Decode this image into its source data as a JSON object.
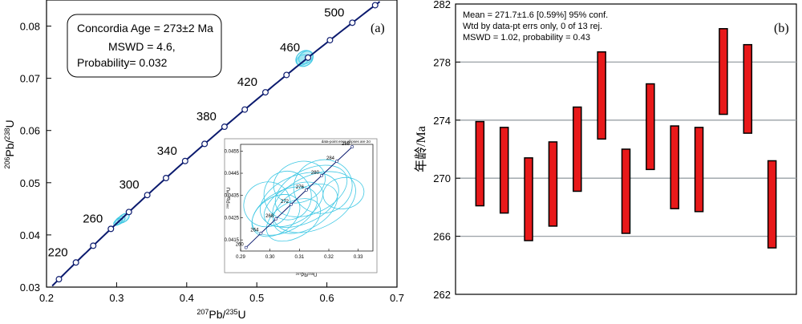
{
  "chart_data": [
    {
      "type": "scatter",
      "panel_label": "(a)",
      "xlabel_parts": [
        "207",
        "Pb/",
        "235",
        "U"
      ],
      "ylabel_parts": [
        "206",
        "Pb/",
        "238",
        "U"
      ],
      "xlim": [
        0.2,
        0.7
      ],
      "ylim": [
        0.03,
        0.085
      ],
      "xticks": [
        "0.2",
        "0.3",
        "0.4",
        "0.5",
        "0.6",
        "0.7"
      ],
      "yticks": [
        "0.03",
        "0.04",
        "0.05",
        "0.06",
        "0.07",
        "0.08"
      ],
      "xtick_values": [
        0.2,
        0.3,
        0.4,
        0.5,
        0.6,
        0.7
      ],
      "ytick_values": [
        0.03,
        0.04,
        0.05,
        0.06,
        0.07,
        0.08
      ],
      "concordia_age_labels": [
        "220",
        "260",
        "300",
        "340",
        "380",
        "420",
        "460",
        "500"
      ],
      "concordia_age_values": [
        220,
        260,
        300,
        340,
        380,
        420,
        460,
        500
      ],
      "concordia_marker_ages": [
        200,
        220,
        240,
        260,
        280,
        300,
        320,
        340,
        360,
        380,
        400,
        420,
        440,
        460,
        480,
        500,
        520
      ],
      "data_ellipses": [
        {
          "x": 0.305,
          "y": 0.0428,
          "rx": 0.008,
          "ry": 0.0006
        },
        {
          "x": 0.31,
          "y": 0.0432,
          "rx": 0.009,
          "ry": 0.0007
        },
        {
          "x": 0.302,
          "y": 0.0425,
          "rx": 0.007,
          "ry": 0.0005
        },
        {
          "x": 0.565,
          "y": 0.0735,
          "rx": 0.009,
          "ry": 0.0009
        },
        {
          "x": 0.57,
          "y": 0.074,
          "rx": 0.011,
          "ry": 0.0011
        },
        {
          "x": 0.568,
          "y": 0.0738,
          "rx": 0.013,
          "ry": 0.0014
        }
      ],
      "stats_box": {
        "line1": "Concordia Age = 273±2 Ma",
        "line2": "MSWD = 4.6,",
        "line3": "Probability= 0.032"
      },
      "inset": {
        "title": "data-point error ellipses are 2σ",
        "xlabel_parts": [
          "207",
          "Pb/",
          "235",
          "U"
        ],
        "ylabel_parts": [
          "206",
          "Pb/",
          "238",
          "U"
        ],
        "xlim": [
          0.29,
          0.335
        ],
        "ylim": [
          0.041,
          0.0458
        ],
        "xticks": [
          "0.29",
          "0.30",
          "0.31",
          "0.32",
          "0.33"
        ],
        "yticks": [
          "0.0415",
          "0.0425",
          "0.0435",
          "0.0445",
          "0.0455"
        ],
        "xtick_values": [
          0.29,
          0.3,
          0.31,
          0.32,
          0.33
        ],
        "ytick_values": [
          0.0415,
          0.0425,
          0.0435,
          0.0445,
          0.0455
        ],
        "age_labels": [
          "260",
          "264",
          "268",
          "272",
          "276",
          "280",
          "284",
          "288"
        ],
        "age_values": [
          260,
          264,
          268,
          272,
          276,
          280,
          284,
          288
        ],
        "ellipses": [
          {
            "x": 0.305,
            "y": 0.0428,
            "rx": 0.012,
            "ry": 0.0009,
            "rot": -28
          },
          {
            "x": 0.31,
            "y": 0.0433,
            "rx": 0.014,
            "ry": 0.0011,
            "rot": -22
          },
          {
            "x": 0.308,
            "y": 0.0431,
            "rx": 0.011,
            "ry": 0.0008,
            "rot": -30
          },
          {
            "x": 0.314,
            "y": 0.0437,
            "rx": 0.013,
            "ry": 0.001,
            "rot": -25
          },
          {
            "x": 0.302,
            "y": 0.0426,
            "rx": 0.009,
            "ry": 0.0008,
            "rot": -35
          },
          {
            "x": 0.318,
            "y": 0.0439,
            "rx": 0.01,
            "ry": 0.0012,
            "rot": -15
          },
          {
            "x": 0.306,
            "y": 0.0435,
            "rx": 0.008,
            "ry": 0.0011,
            "rot": -20
          },
          {
            "x": 0.312,
            "y": 0.0429,
            "rx": 0.012,
            "ry": 0.0009,
            "rot": -30
          },
          {
            "x": 0.325,
            "y": 0.0436,
            "rx": 0.007,
            "ry": 0.0007,
            "rot": -10
          },
          {
            "x": 0.299,
            "y": 0.0431,
            "rx": 0.008,
            "ry": 0.001,
            "rot": -25
          },
          {
            "x": 0.31,
            "y": 0.0441,
            "rx": 0.009,
            "ry": 0.0009,
            "rot": -20
          },
          {
            "x": 0.315,
            "y": 0.0432,
            "rx": 0.015,
            "ry": 0.0012,
            "rot": -25
          },
          {
            "x": 0.308,
            "y": 0.0424,
            "rx": 0.01,
            "ry": 0.0008,
            "rot": -30
          }
        ]
      }
    },
    {
      "type": "bar",
      "subtype": "floating-error-bars",
      "panel_label": "(b)",
      "ylabel": "年龄/Ma",
      "ylim": [
        262,
        282
      ],
      "yticks": [
        "262",
        "266",
        "270",
        "274",
        "278",
        "282"
      ],
      "ytick_values": [
        262,
        266,
        270,
        274,
        278,
        282
      ],
      "gridlines": [
        266,
        270,
        274,
        278
      ],
      "stats_lines": [
        "Mean = 271.7±1.6  [0.59%]  95% conf.",
        "Wtd by data-pt errs only, 0 of 13 rej.",
        "MSWD = 1.02, probability = 0.43"
      ],
      "bars": [
        {
          "low": 268.1,
          "high": 273.9
        },
        {
          "low": 267.6,
          "high": 273.5
        },
        {
          "low": 265.7,
          "high": 271.4
        },
        {
          "low": 266.7,
          "high": 272.5
        },
        {
          "low": 269.1,
          "high": 274.9
        },
        {
          "low": 272.7,
          "high": 278.7
        },
        {
          "low": 266.2,
          "high": 272.0
        },
        {
          "low": 270.6,
          "high": 276.5
        },
        {
          "low": 267.9,
          "high": 273.6
        },
        {
          "low": 267.7,
          "high": 273.5
        },
        {
          "low": 274.4,
          "high": 280.3
        },
        {
          "low": 273.1,
          "high": 279.2
        },
        {
          "low": 265.2,
          "high": 271.2
        }
      ],
      "bar_color": "#e8191a",
      "grid_color": "#9aa0a6"
    }
  ],
  "colors": {
    "concordia": "#0b1a6e",
    "ellipse": "#3fc8e4",
    "ellipse_fill": "#7fdcef"
  }
}
